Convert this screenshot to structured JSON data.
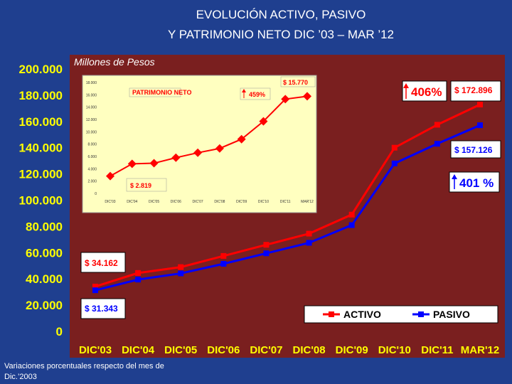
{
  "slide": {
    "title_line1": "EVOLUCIÓN ACTIVO, PASIVO",
    "title_line2": "Y PATRIMONIO NETO DIC ’03 – MAR ’12",
    "unit_label": "Millones de Pesos",
    "footnote_line1": "Variaciones porcentuales respecto del mes de",
    "footnote_line2": "Dic.’2003"
  },
  "colors": {
    "background": "#1f3f8f",
    "plot_area": "#7a1f1f",
    "activo": "#ff0000",
    "pasivo": "#0000ff",
    "inset_line": "#ff0000",
    "inset_bg": "#ffffc0",
    "axis_text": "#ffff00"
  },
  "annotations": {
    "activo_start": "$ 34.162",
    "pasivo_start": "$ 31.343",
    "activo_end": "$ 172.896",
    "pasivo_end": "$ 157.126",
    "activo_growth": "406%",
    "pasivo_growth": "401 %"
  },
  "chart_data": [
    {
      "type": "line",
      "categories": [
        "DIC'03",
        "DIC'04",
        "DIC'05",
        "DIC'06",
        "DIC'07",
        "DIC'08",
        "DIC'09",
        "DIC'10",
        "DIC'11",
        "MAR'12"
      ],
      "series": [
        {
          "name": "ACTIVO",
          "values": [
            34162,
            44500,
            49000,
            57500,
            66000,
            74500,
            89000,
            140000,
            157500,
            172896
          ]
        },
        {
          "name": "PASIVO",
          "values": [
            31343,
            39500,
            44200,
            51500,
            59500,
            67500,
            81000,
            128000,
            143000,
            157126
          ]
        }
      ],
      "yticks": [
        "0",
        "20.000",
        "40.000",
        "60.000",
        "80.000",
        "100.000",
        "120.000",
        "140.000",
        "160.000",
        "180.000",
        "200.000"
      ],
      "ylim": [
        0,
        200000
      ],
      "legend": "bottom-right"
    },
    {
      "type": "line",
      "inset": true,
      "categories": [
        "DIC'03",
        "DIC'04",
        "DIC'05",
        "DIC'06",
        "DIC'07",
        "DIC'08",
        "DIC'09",
        "DIC'10",
        "DIC'11",
        "MAR'12"
      ],
      "series": [
        {
          "name": "PATRIMONIO NETO",
          "values": [
            2819,
            4800,
            4900,
            5800,
            6600,
            7300,
            8800,
            11700,
            15300,
            15770
          ]
        }
      ],
      "ylim": [
        0,
        18000
      ],
      "yticks": [
        "0",
        "2.000",
        "4.000",
        "6.000",
        "8.000",
        "10.000",
        "12.000",
        "14.000",
        "16.000",
        "18.000"
      ],
      "start_label": "$ 2.819",
      "end_label": "$ 15.770",
      "growth_label": "459%"
    }
  ]
}
